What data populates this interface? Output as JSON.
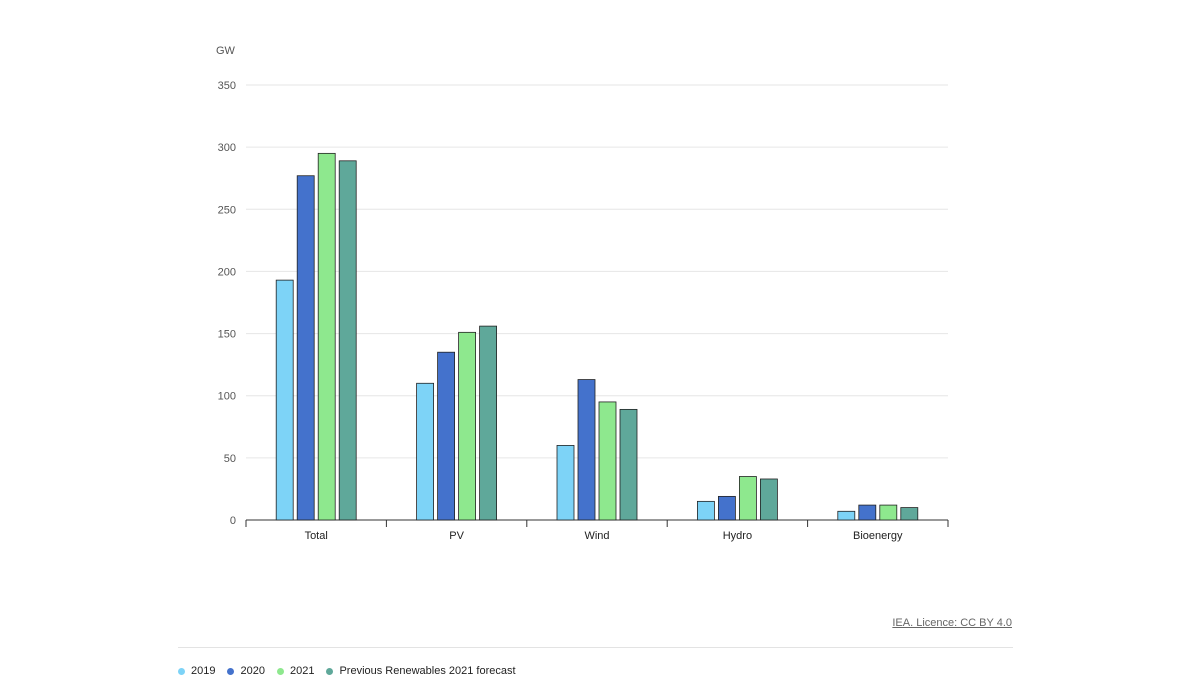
{
  "chart_data": {
    "type": "bar",
    "ylabel": "GW",
    "categories": [
      "Total",
      "PV",
      "Wind",
      "Hydro",
      "Bioenergy"
    ],
    "ylim": [
      0,
      350
    ],
    "yticks": [
      0,
      50,
      100,
      150,
      200,
      250,
      300,
      350
    ],
    "grid": true,
    "legend_position": "bottom-left",
    "series": [
      {
        "name": "2019",
        "color": "#7dd3f7",
        "values": [
          193,
          110,
          60,
          15,
          7
        ]
      },
      {
        "name": "2020",
        "color": "#4472cc",
        "values": [
          277,
          135,
          113,
          19,
          12
        ]
      },
      {
        "name": "2021",
        "color": "#8ee88e",
        "values": [
          295,
          151,
          95,
          35,
          12
        ]
      },
      {
        "name": "Previous Renewables 2021 forecast",
        "color": "#5fa89a",
        "values": [
          289,
          156,
          89,
          33,
          10
        ]
      }
    ]
  },
  "credit": "IEA. Licence: CC BY 4.0"
}
